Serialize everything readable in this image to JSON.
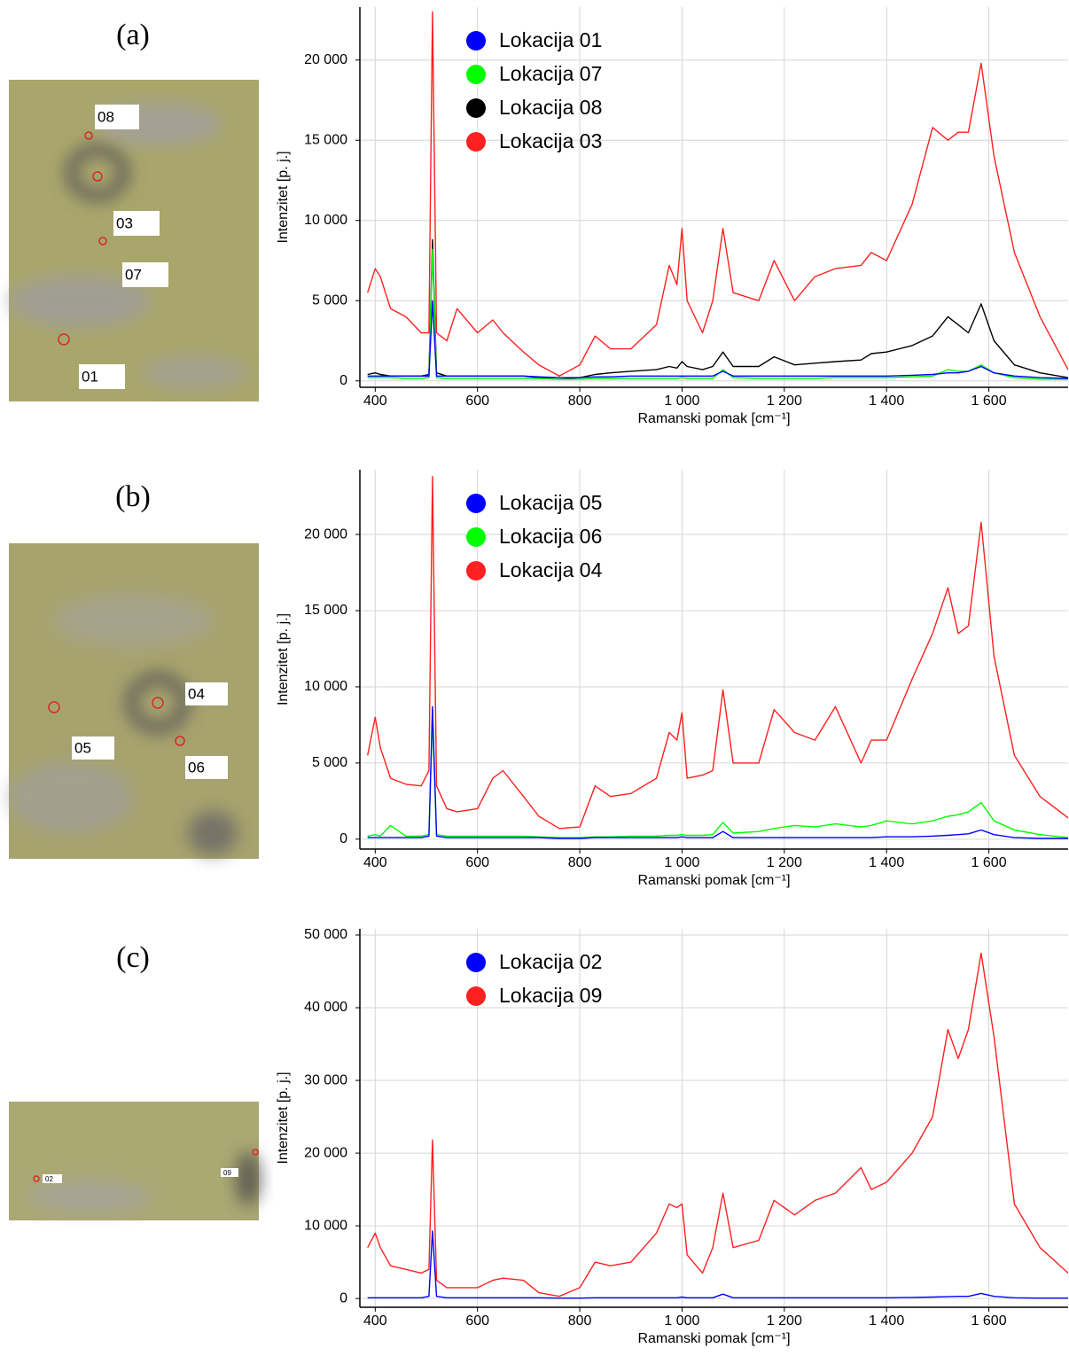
{
  "chart_data": [
    {
      "type": "line",
      "panel": "(a)",
      "xlabel": "Ramanski pomak [cm⁻¹]",
      "ylabel": "Intenzitet [p. j.]",
      "xlim": [
        370,
        1755
      ],
      "ylim": [
        -400,
        23300
      ],
      "grid": true,
      "legend": "upper-left",
      "xticks": [
        400,
        600,
        800,
        {
          "value": 1000,
          "label": "1 000"
        },
        {
          "value": 1200,
          "label": "1 200"
        },
        {
          "value": 1400,
          "label": "1 400"
        },
        {
          "value": 1600,
          "label": "1 600"
        }
      ],
      "yticks": [
        0,
        {
          "value": 5000,
          "label": "5 000"
        },
        {
          "value": 10000,
          "label": "10 000"
        },
        {
          "value": 15000,
          "label": "15 000"
        },
        {
          "value": 20000,
          "label": "20 000"
        }
      ],
      "x": [
        385,
        400,
        410,
        430,
        460,
        490,
        505,
        512,
        520,
        540,
        560,
        600,
        630,
        650,
        690,
        720,
        760,
        800,
        830,
        860,
        900,
        950,
        975,
        990,
        1000,
        1010,
        1040,
        1060,
        1080,
        1100,
        1150,
        1180,
        1220,
        1260,
        1300,
        1350,
        1370,
        1400,
        1450,
        1490,
        1520,
        1540,
        1560,
        1585,
        1610,
        1650,
        1700,
        1755
      ],
      "series": [
        {
          "name": "Lokacija 01",
          "color": "#0000ff",
          "values": [
            300,
            300,
            300,
            300,
            300,
            300,
            300,
            5000,
            300,
            300,
            300,
            300,
            300,
            300,
            300,
            250,
            200,
            200,
            250,
            250,
            300,
            300,
            300,
            300,
            300,
            300,
            300,
            300,
            600,
            300,
            300,
            300,
            300,
            300,
            300,
            300,
            300,
            300,
            350,
            400,
            500,
            500,
            600,
            900,
            500,
            300,
            200,
            150
          ]
        },
        {
          "name": "Lokacija 07",
          "color": "#00ff00",
          "values": [
            200,
            200,
            200,
            200,
            150,
            150,
            200,
            8200,
            200,
            150,
            150,
            150,
            150,
            150,
            150,
            150,
            100,
            100,
            150,
            150,
            150,
            150,
            150,
            150,
            200,
            150,
            150,
            150,
            700,
            200,
            150,
            150,
            150,
            150,
            200,
            200,
            200,
            200,
            250,
            300,
            700,
            600,
            600,
            1000,
            500,
            200,
            100,
            100
          ]
        },
        {
          "name": "Lokacija 08",
          "color": "#000000",
          "values": [
            400,
            500,
            400,
            300,
            300,
            300,
            400,
            8800,
            500,
            300,
            300,
            300,
            300,
            300,
            300,
            200,
            100,
            200,
            400,
            500,
            600,
            700,
            900,
            800,
            1200,
            900,
            700,
            900,
            1800,
            900,
            900,
            1500,
            1000,
            1100,
            1200,
            1300,
            1700,
            1800,
            2200,
            2800,
            4000,
            3500,
            3000,
            4800,
            2500,
            1000,
            500,
            200
          ]
        },
        {
          "name": "Lokacija 03",
          "color": "#ff2020",
          "values": [
            5500,
            7000,
            6500,
            4500,
            4000,
            3000,
            3000,
            23000,
            3000,
            2500,
            4500,
            3000,
            3800,
            3000,
            1800,
            1000,
            300,
            1000,
            2800,
            2000,
            2000,
            3500,
            7200,
            6000,
            9500,
            5000,
            3000,
            5000,
            9500,
            5500,
            5000,
            7500,
            5000,
            6500,
            7000,
            7200,
            8000,
            7500,
            11000,
            15800,
            15000,
            15500,
            15500,
            19800,
            14000,
            8000,
            4000,
            700
          ]
        }
      ]
    },
    {
      "type": "line",
      "panel": "(b)",
      "xlabel": "Ramanski pomak [cm⁻¹]",
      "ylabel": "Intenzitet [p. j.]",
      "xlim": [
        370,
        1755
      ],
      "ylim": [
        -650,
        24250
      ],
      "grid": true,
      "legend": "upper-left",
      "xticks": [
        400,
        600,
        800,
        {
          "value": 1000,
          "label": "1 000"
        },
        {
          "value": 1200,
          "label": "1 200"
        },
        {
          "value": 1400,
          "label": "1 400"
        },
        {
          "value": 1600,
          "label": "1 600"
        }
      ],
      "yticks": [
        0,
        {
          "value": 5000,
          "label": "5 000"
        },
        {
          "value": 10000,
          "label": "10 000"
        },
        {
          "value": 15000,
          "label": "15 000"
        },
        {
          "value": 20000,
          "label": "20 000"
        }
      ],
      "x": [
        385,
        400,
        410,
        430,
        460,
        490,
        505,
        512,
        520,
        540,
        560,
        600,
        630,
        650,
        690,
        720,
        760,
        800,
        830,
        860,
        900,
        950,
        975,
        990,
        1000,
        1010,
        1040,
        1060,
        1080,
        1100,
        1150,
        1180,
        1220,
        1260,
        1300,
        1350,
        1370,
        1400,
        1450,
        1490,
        1520,
        1540,
        1560,
        1585,
        1610,
        1650,
        1700,
        1755
      ],
      "series": [
        {
          "name": "Lokacija 05",
          "color": "#0000ff",
          "values": [
            100,
            100,
            100,
            100,
            100,
            100,
            200,
            8700,
            200,
            100,
            100,
            100,
            100,
            100,
            100,
            100,
            50,
            50,
            100,
            100,
            100,
            100,
            100,
            100,
            150,
            100,
            100,
            100,
            500,
            100,
            100,
            100,
            100,
            100,
            100,
            100,
            100,
            150,
            150,
            200,
            250,
            300,
            350,
            600,
            300,
            100,
            50,
            50
          ]
        },
        {
          "name": "Lokacija 06",
          "color": "#00ff00",
          "values": [
            200,
            300,
            200,
            900,
            200,
            200,
            300,
            8000,
            300,
            200,
            200,
            200,
            200,
            200,
            200,
            150,
            100,
            100,
            150,
            150,
            200,
            200,
            250,
            250,
            300,
            250,
            250,
            300,
            1100,
            400,
            500,
            700,
            900,
            800,
            1000,
            800,
            900,
            1200,
            1000,
            1200,
            1500,
            1600,
            1800,
            2400,
            1200,
            600,
            300,
            100
          ]
        },
        {
          "name": "Lokacija 04",
          "color": "#ff2020",
          "values": [
            5500,
            8000,
            6000,
            4000,
            3600,
            3500,
            4500,
            23800,
            3500,
            2000,
            1800,
            2000,
            4000,
            4500,
            2800,
            1500,
            700,
            800,
            3500,
            2800,
            3000,
            4000,
            7000,
            6500,
            8300,
            4000,
            4200,
            4500,
            9800,
            5000,
            5000,
            8500,
            7000,
            6500,
            8700,
            5000,
            6500,
            6500,
            10500,
            13500,
            16500,
            13500,
            14000,
            20800,
            12000,
            5500,
            2800,
            1400
          ]
        }
      ]
    },
    {
      "type": "line",
      "panel": "(c)",
      "xlabel": "Ramanski pomak [cm⁻¹]",
      "ylabel": "Intenzitet [p. j.]",
      "xlim": [
        370,
        1755
      ],
      "ylim": [
        -1200,
        50850
      ],
      "grid": true,
      "legend": "upper-left",
      "xticks": [
        400,
        600,
        800,
        {
          "value": 1000,
          "label": "1 000"
        },
        {
          "value": 1200,
          "label": "1 200"
        },
        {
          "value": 1400,
          "label": "1 400"
        },
        {
          "value": 1600,
          "label": "1 600"
        }
      ],
      "yticks": [
        0,
        {
          "value": 10000,
          "label": "10 000"
        },
        {
          "value": 20000,
          "label": "20 000"
        },
        {
          "value": 30000,
          "label": "30 000"
        },
        {
          "value": 40000,
          "label": "40 000"
        },
        {
          "value": 50000,
          "label": "50 000"
        }
      ],
      "x": [
        385,
        400,
        410,
        430,
        460,
        490,
        505,
        512,
        520,
        540,
        560,
        600,
        630,
        650,
        690,
        720,
        760,
        800,
        830,
        860,
        900,
        950,
        975,
        990,
        1000,
        1010,
        1040,
        1060,
        1080,
        1100,
        1150,
        1180,
        1220,
        1260,
        1300,
        1350,
        1370,
        1400,
        1450,
        1490,
        1520,
        1540,
        1560,
        1585,
        1610,
        1650,
        1700,
        1755
      ],
      "series": [
        {
          "name": "Lokacija 02",
          "color": "#0000ff",
          "values": [
            100,
            100,
            100,
            100,
            100,
            100,
            300,
            9300,
            300,
            100,
            100,
            100,
            100,
            100,
            100,
            100,
            50,
            50,
            100,
            100,
            100,
            100,
            100,
            100,
            200,
            100,
            100,
            100,
            600,
            100,
            100,
            100,
            100,
            100,
            100,
            100,
            100,
            100,
            150,
            200,
            250,
            300,
            300,
            700,
            300,
            100,
            50,
            50
          ]
        },
        {
          "name": "Lokacija 09",
          "color": "#ff2020",
          "values": [
            7000,
            9000,
            7000,
            4500,
            4000,
            3500,
            4000,
            21800,
            2500,
            1500,
            1500,
            1500,
            2500,
            2800,
            2500,
            800,
            300,
            1500,
            5000,
            4500,
            5000,
            9000,
            13000,
            12500,
            13000,
            6000,
            3500,
            7000,
            14500,
            7000,
            8000,
            13500,
            11500,
            13500,
            14500,
            18000,
            15000,
            16000,
            20000,
            25000,
            37000,
            33000,
            37000,
            47500,
            36000,
            13000,
            7000,
            3500
          ]
        }
      ]
    }
  ],
  "photos": [
    {
      "panel": "(a)",
      "labels": [
        "08",
        "03",
        "07",
        "01"
      ]
    },
    {
      "panel": "(b)",
      "labels": [
        "04",
        "05",
        "06"
      ]
    },
    {
      "panel": "(c)",
      "labels": [
        "02",
        "09"
      ]
    }
  ]
}
